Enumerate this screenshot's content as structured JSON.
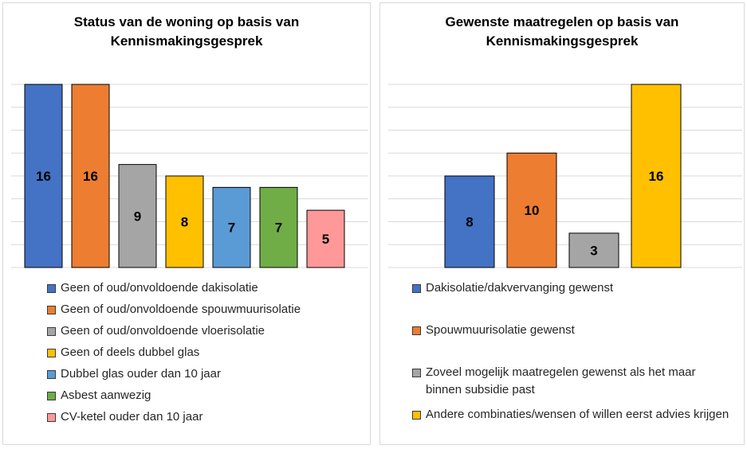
{
  "chart_data": [
    {
      "type": "bar",
      "title_lines": [
        "Status van de woning op basis van",
        "Kennismakingsgesprek"
      ],
      "categories": [
        "Geen of oud/onvoldoende dakisolatie",
        "Geen of oud/onvoldoende spouwmuurisolatie",
        "Geen of oud/onvoldoende vloerisolatie",
        "Geen of deels dubbel glas",
        "Dubbel glas ouder dan 10 jaar",
        "Asbest aanwezig",
        "CV-ketel ouder dan 10 jaar"
      ],
      "values": [
        16,
        16,
        9,
        8,
        7,
        7,
        5
      ],
      "data_labels": [
        "16",
        "16",
        "9",
        "8",
        "7",
        "7",
        "5"
      ],
      "colors": [
        "#4472c4",
        "#ed7d31",
        "#a5a5a5",
        "#ffc000",
        "#5b9bd5",
        "#70ad47",
        "#ff9999"
      ],
      "ylim": [
        0,
        16
      ],
      "grid": true,
      "legend_position": "bottom"
    },
    {
      "type": "bar",
      "title_lines": [
        "Gewenste maatregelen op basis van",
        "Kennismakingsgesprek"
      ],
      "categories": [
        "Dakisolatie/dakvervanging gewenst",
        "Spouwmuurisolatie gewenst",
        "Zoveel mogelijk maatregelen gewenst als het maar binnen subsidie past",
        "Andere combinaties/wensen of willen eerst advies krijgen"
      ],
      "values": [
        8,
        10,
        3,
        16
      ],
      "data_labels": [
        "8",
        "10",
        "3",
        "16"
      ],
      "colors": [
        "#4472c4",
        "#ed7d31",
        "#a5a5a5",
        "#ffc000"
      ],
      "ylim": [
        0,
        16
      ],
      "grid": true,
      "legend_position": "bottom"
    }
  ]
}
